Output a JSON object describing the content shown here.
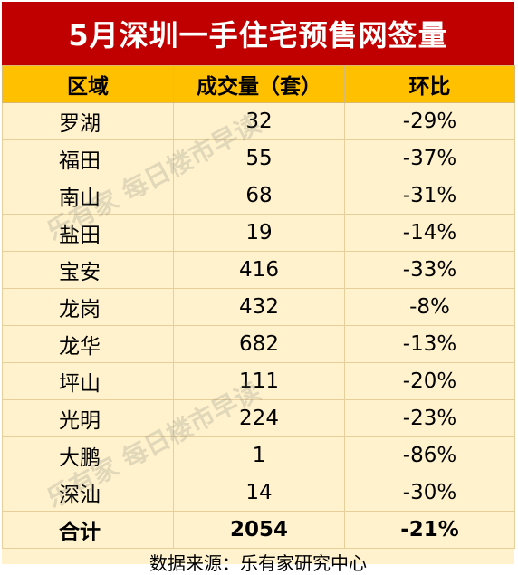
{
  "title": "5月深圳一手住宅预售网签量",
  "source": "数据来源：乐有家研究中心",
  "watermark": "乐有家 每日楼市早读",
  "colors": {
    "title_bg": "#c00000",
    "header_bg": "#ffc000",
    "body_bg": "#fff2cc"
  },
  "chart_data": {
    "type": "table",
    "title": "5月深圳一手住宅预售网签量",
    "columns": [
      "区域",
      "成交量（套）",
      "环比"
    ],
    "rows": [
      [
        "罗湖",
        "32",
        "-29%"
      ],
      [
        "福田",
        "55",
        "-37%"
      ],
      [
        "南山",
        "68",
        "-31%"
      ],
      [
        "盐田",
        "19",
        "-14%"
      ],
      [
        "宝安",
        "416",
        "-33%"
      ],
      [
        "龙岗",
        "432",
        "-8%"
      ],
      [
        "龙华",
        "682",
        "-13%"
      ],
      [
        "坪山",
        "111",
        "-20%"
      ],
      [
        "光明",
        "224",
        "-23%"
      ],
      [
        "大鹏",
        "1",
        "-86%"
      ],
      [
        "深汕",
        "14",
        "-30%"
      ]
    ],
    "total": [
      "合计",
      "2054",
      "-21%"
    ]
  }
}
